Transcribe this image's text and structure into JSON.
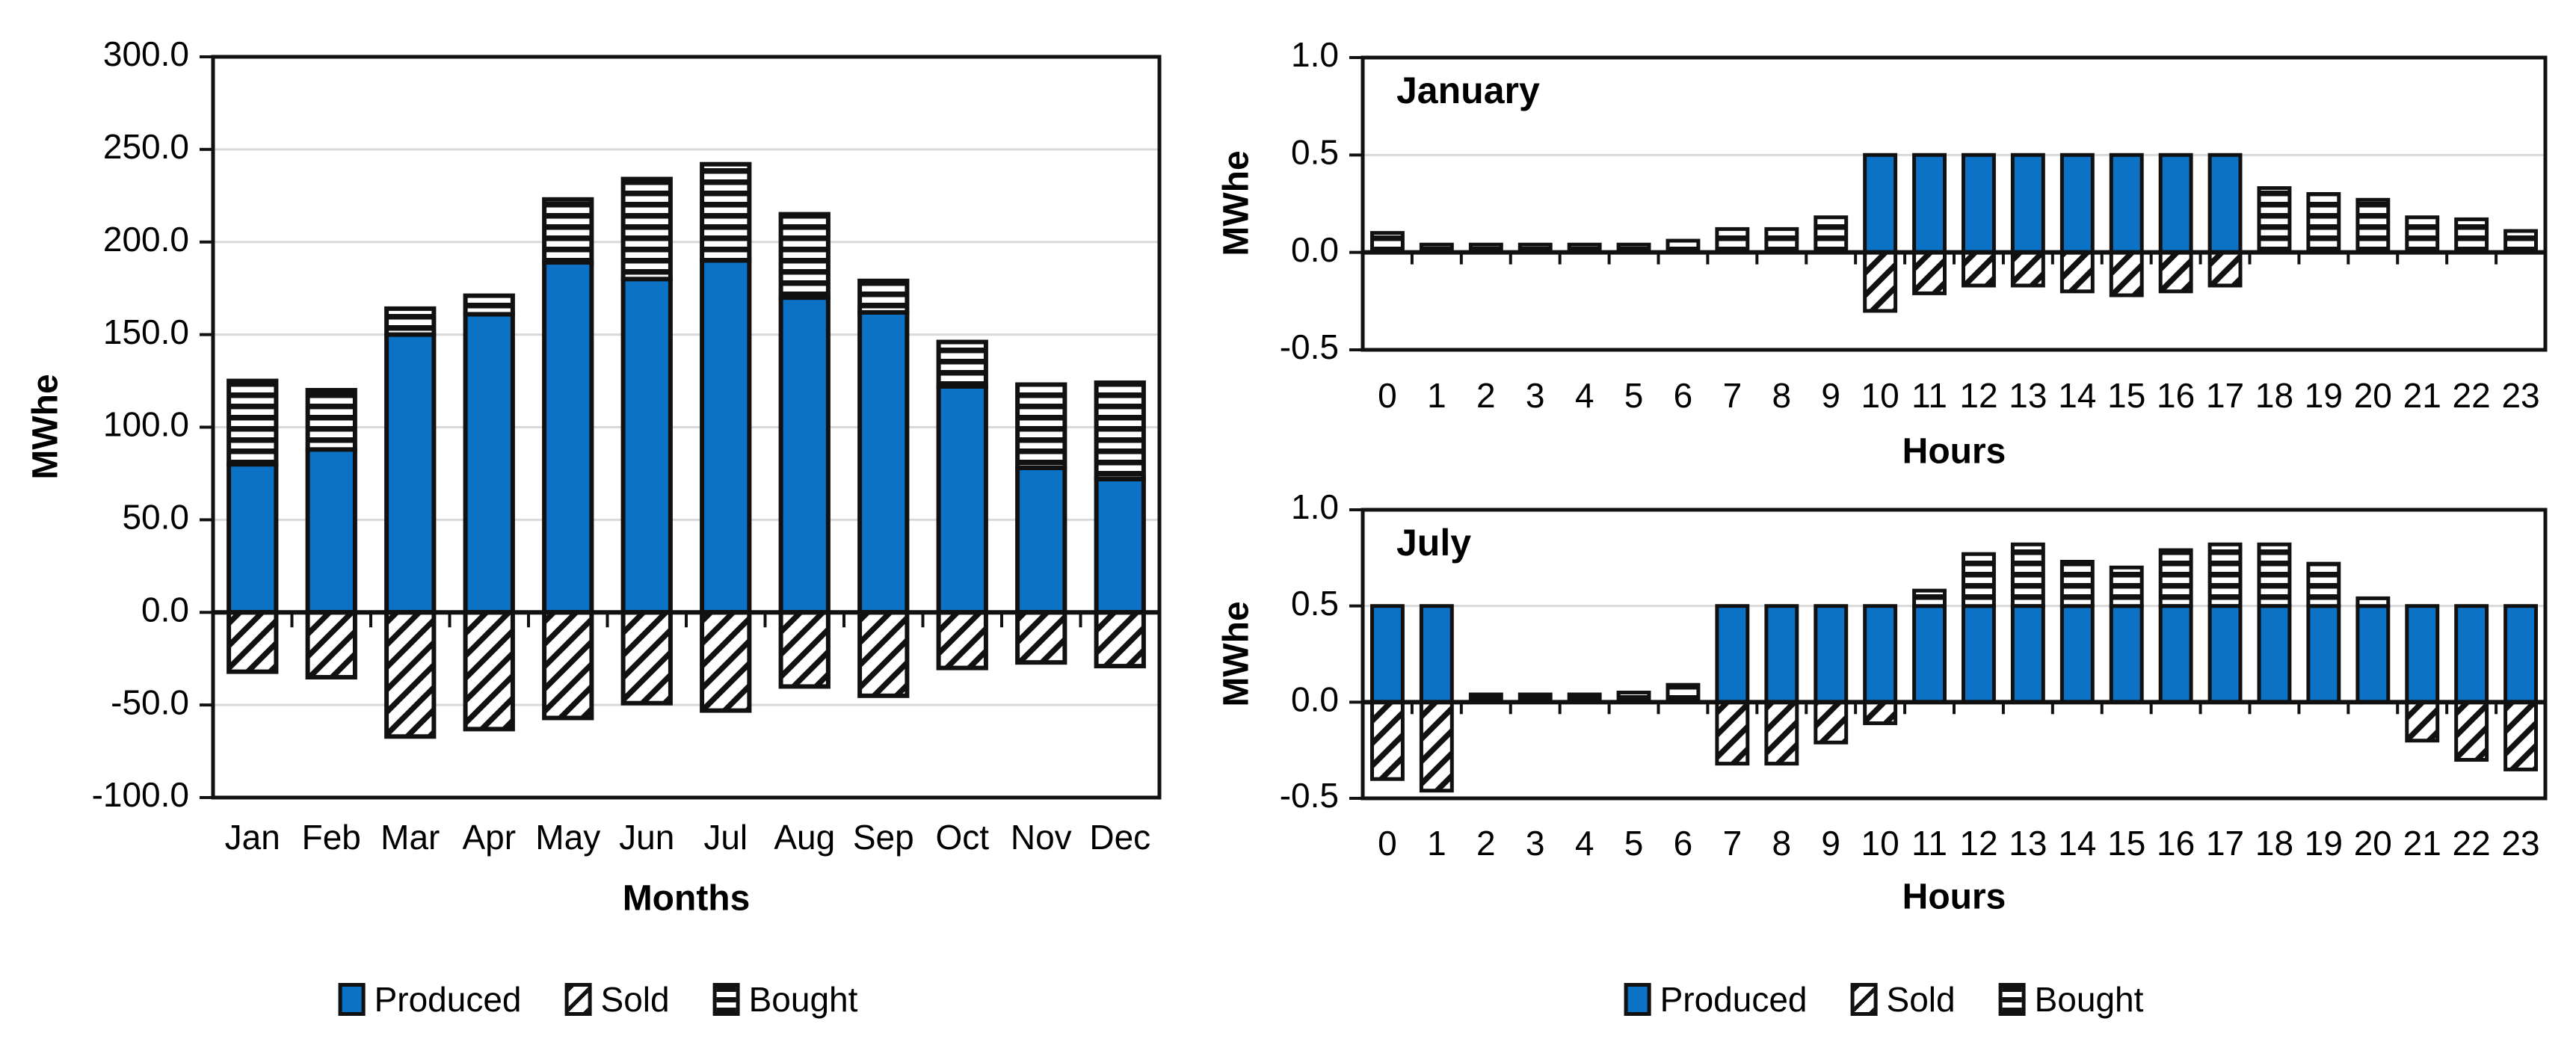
{
  "colors": {
    "produced_blue": "#0B72C6",
    "bar_outline": "#111111",
    "gridline": "#D9D9D9",
    "axis_black": "#111111",
    "text": "#000000",
    "background": "#FFFFFF"
  },
  "legend": {
    "items": [
      {
        "label": "Produced",
        "swatch": "solid-blue-square"
      },
      {
        "label": "Sold",
        "swatch": "diagonal-hatch-square"
      },
      {
        "label": "Bought",
        "swatch": "horizontal-stripes-square"
      }
    ]
  },
  "chart_data": [
    {
      "id": "monthly",
      "type": "bar",
      "subtype": "stacked-with-negative",
      "title": "",
      "xlabel": "Months",
      "ylabel": "MWhe",
      "ylim": [
        -100,
        300
      ],
      "yticks": [
        300,
        250,
        200,
        150,
        100,
        50,
        0,
        -50,
        -100
      ],
      "ytick_labels": [
        "300.0",
        "250.0",
        "200.0",
        "150.0",
        "100.0",
        "50.0",
        "0.0",
        "-50.0",
        "-100.0"
      ],
      "grid": "horizontal-light",
      "legend_position": "bottom",
      "categories": [
        "Jan",
        "Feb",
        "Mar",
        "Apr",
        "May",
        "Jun",
        "Jul",
        "Aug",
        "Sep",
        "Oct",
        "Nov",
        "Dec"
      ],
      "series": [
        {
          "name": "Produced",
          "style": "solid",
          "values": [
            80,
            88,
            150,
            161,
            189,
            180,
            190,
            170,
            162,
            122,
            78,
            72
          ]
        },
        {
          "name": "Sold",
          "style": "hatch",
          "values": [
            -32,
            -35,
            -67,
            -63,
            -57,
            -49,
            -53,
            -40,
            -45,
            -30,
            -27,
            -29
          ]
        },
        {
          "name": "Bought",
          "style": "stripe",
          "values": [
            45,
            32,
            14,
            10,
            34,
            54,
            52,
            45,
            17,
            24,
            45,
            52
          ]
        }
      ]
    },
    {
      "id": "january",
      "type": "bar",
      "subtype": "stacked-with-negative",
      "title": "January",
      "xlabel": "Hours",
      "ylabel": "MWhe",
      "ylim": [
        -0.5,
        1.0
      ],
      "yticks": [
        1.0,
        0.5,
        0.0,
        -0.5
      ],
      "ytick_labels": [
        "1.0",
        "0.5",
        "0.0",
        "-0.5"
      ],
      "grid": "horizontal-light",
      "legend_position": "bottom",
      "categories": [
        "0",
        "1",
        "2",
        "3",
        "4",
        "5",
        "6",
        "7",
        "8",
        "9",
        "10",
        "11",
        "12",
        "13",
        "14",
        "15",
        "16",
        "17",
        "18",
        "19",
        "20",
        "21",
        "22",
        "23"
      ],
      "series": [
        {
          "name": "Produced",
          "style": "solid",
          "values": [
            0,
            0,
            0,
            0,
            0,
            0,
            0,
            0,
            0,
            0,
            0.5,
            0.5,
            0.5,
            0.5,
            0.5,
            0.5,
            0.5,
            0.5,
            0,
            0,
            0,
            0,
            0,
            0
          ]
        },
        {
          "name": "Sold",
          "style": "hatch",
          "values": [
            0,
            0,
            0,
            0,
            0,
            0,
            0,
            0,
            0,
            0,
            -0.3,
            -0.21,
            -0.17,
            -0.17,
            -0.2,
            -0.22,
            -0.2,
            -0.17,
            0,
            0,
            0,
            0,
            0,
            0
          ]
        },
        {
          "name": "Bought",
          "style": "stripe",
          "values": [
            0.1,
            0.04,
            0.04,
            0.04,
            0.04,
            0.04,
            0.06,
            0.12,
            0.12,
            0.18,
            0,
            0,
            0,
            0,
            0,
            0,
            0,
            0,
            0.33,
            0.3,
            0.27,
            0.18,
            0.17,
            0.11
          ]
        }
      ]
    },
    {
      "id": "july",
      "type": "bar",
      "subtype": "stacked-with-negative",
      "title": "July",
      "xlabel": "Hours",
      "ylabel": "MWhe",
      "ylim": [
        -0.5,
        1.0
      ],
      "yticks": [
        1.0,
        0.5,
        0.0,
        -0.5
      ],
      "ytick_labels": [
        "1.0",
        "0.5",
        "0.0",
        "-0.5"
      ],
      "grid": "horizontal-light",
      "legend_position": "bottom",
      "categories": [
        "0",
        "1",
        "2",
        "3",
        "4",
        "5",
        "6",
        "7",
        "8",
        "9",
        "10",
        "11",
        "12",
        "13",
        "14",
        "15",
        "16",
        "17",
        "18",
        "19",
        "20",
        "21",
        "22",
        "23"
      ],
      "series": [
        {
          "name": "Produced",
          "style": "solid",
          "values": [
            0.5,
            0.5,
            0,
            0,
            0,
            0,
            0,
            0.5,
            0.5,
            0.5,
            0.5,
            0.5,
            0.5,
            0.5,
            0.5,
            0.5,
            0.5,
            0.5,
            0.5,
            0.5,
            0.5,
            0.5,
            0.5,
            0.5
          ]
        },
        {
          "name": "Sold",
          "style": "hatch",
          "values": [
            -0.4,
            -0.46,
            0,
            0,
            0,
            0,
            0,
            -0.32,
            -0.32,
            -0.21,
            -0.11,
            0,
            0,
            0,
            0,
            0,
            0,
            0,
            0,
            0,
            0,
            -0.2,
            -0.3,
            -0.35
          ]
        },
        {
          "name": "Bought",
          "style": "stripe",
          "values": [
            0,
            0,
            0.04,
            0.04,
            0.04,
            0.05,
            0.09,
            0,
            0,
            0,
            0,
            0.08,
            0.27,
            0.32,
            0.23,
            0.2,
            0.29,
            0.32,
            0.32,
            0.22,
            0.04,
            0,
            0,
            0
          ]
        }
      ]
    }
  ]
}
